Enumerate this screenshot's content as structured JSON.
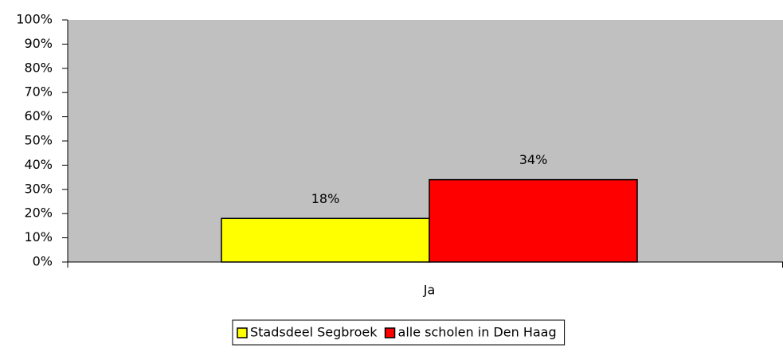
{
  "chart_data": {
    "type": "bar",
    "categories": [
      "Ja"
    ],
    "series": [
      {
        "name": "Stadsdeel Segbroek",
        "color": "#ffff00",
        "values": [
          18
        ],
        "value_labels": [
          "18%"
        ]
      },
      {
        "name": "alle scholen in Den Haag",
        "color": "#ff0000",
        "values": [
          34
        ],
        "value_labels": [
          "34%"
        ]
      }
    ],
    "ylim": [
      0,
      100
    ],
    "yticks": [
      {
        "value": 0,
        "label": "0%"
      },
      {
        "value": 10,
        "label": "10%"
      },
      {
        "value": 20,
        "label": "20%"
      },
      {
        "value": 30,
        "label": "30%"
      },
      {
        "value": 40,
        "label": "40%"
      },
      {
        "value": 50,
        "label": "50%"
      },
      {
        "value": 60,
        "label": "60%"
      },
      {
        "value": 70,
        "label": "70%"
      },
      {
        "value": 80,
        "label": "80%"
      },
      {
        "value": 90,
        "label": "90%"
      },
      {
        "value": 100,
        "label": "100%"
      }
    ],
    "plot_background": "#c0c0c0",
    "legend": "bottom"
  }
}
